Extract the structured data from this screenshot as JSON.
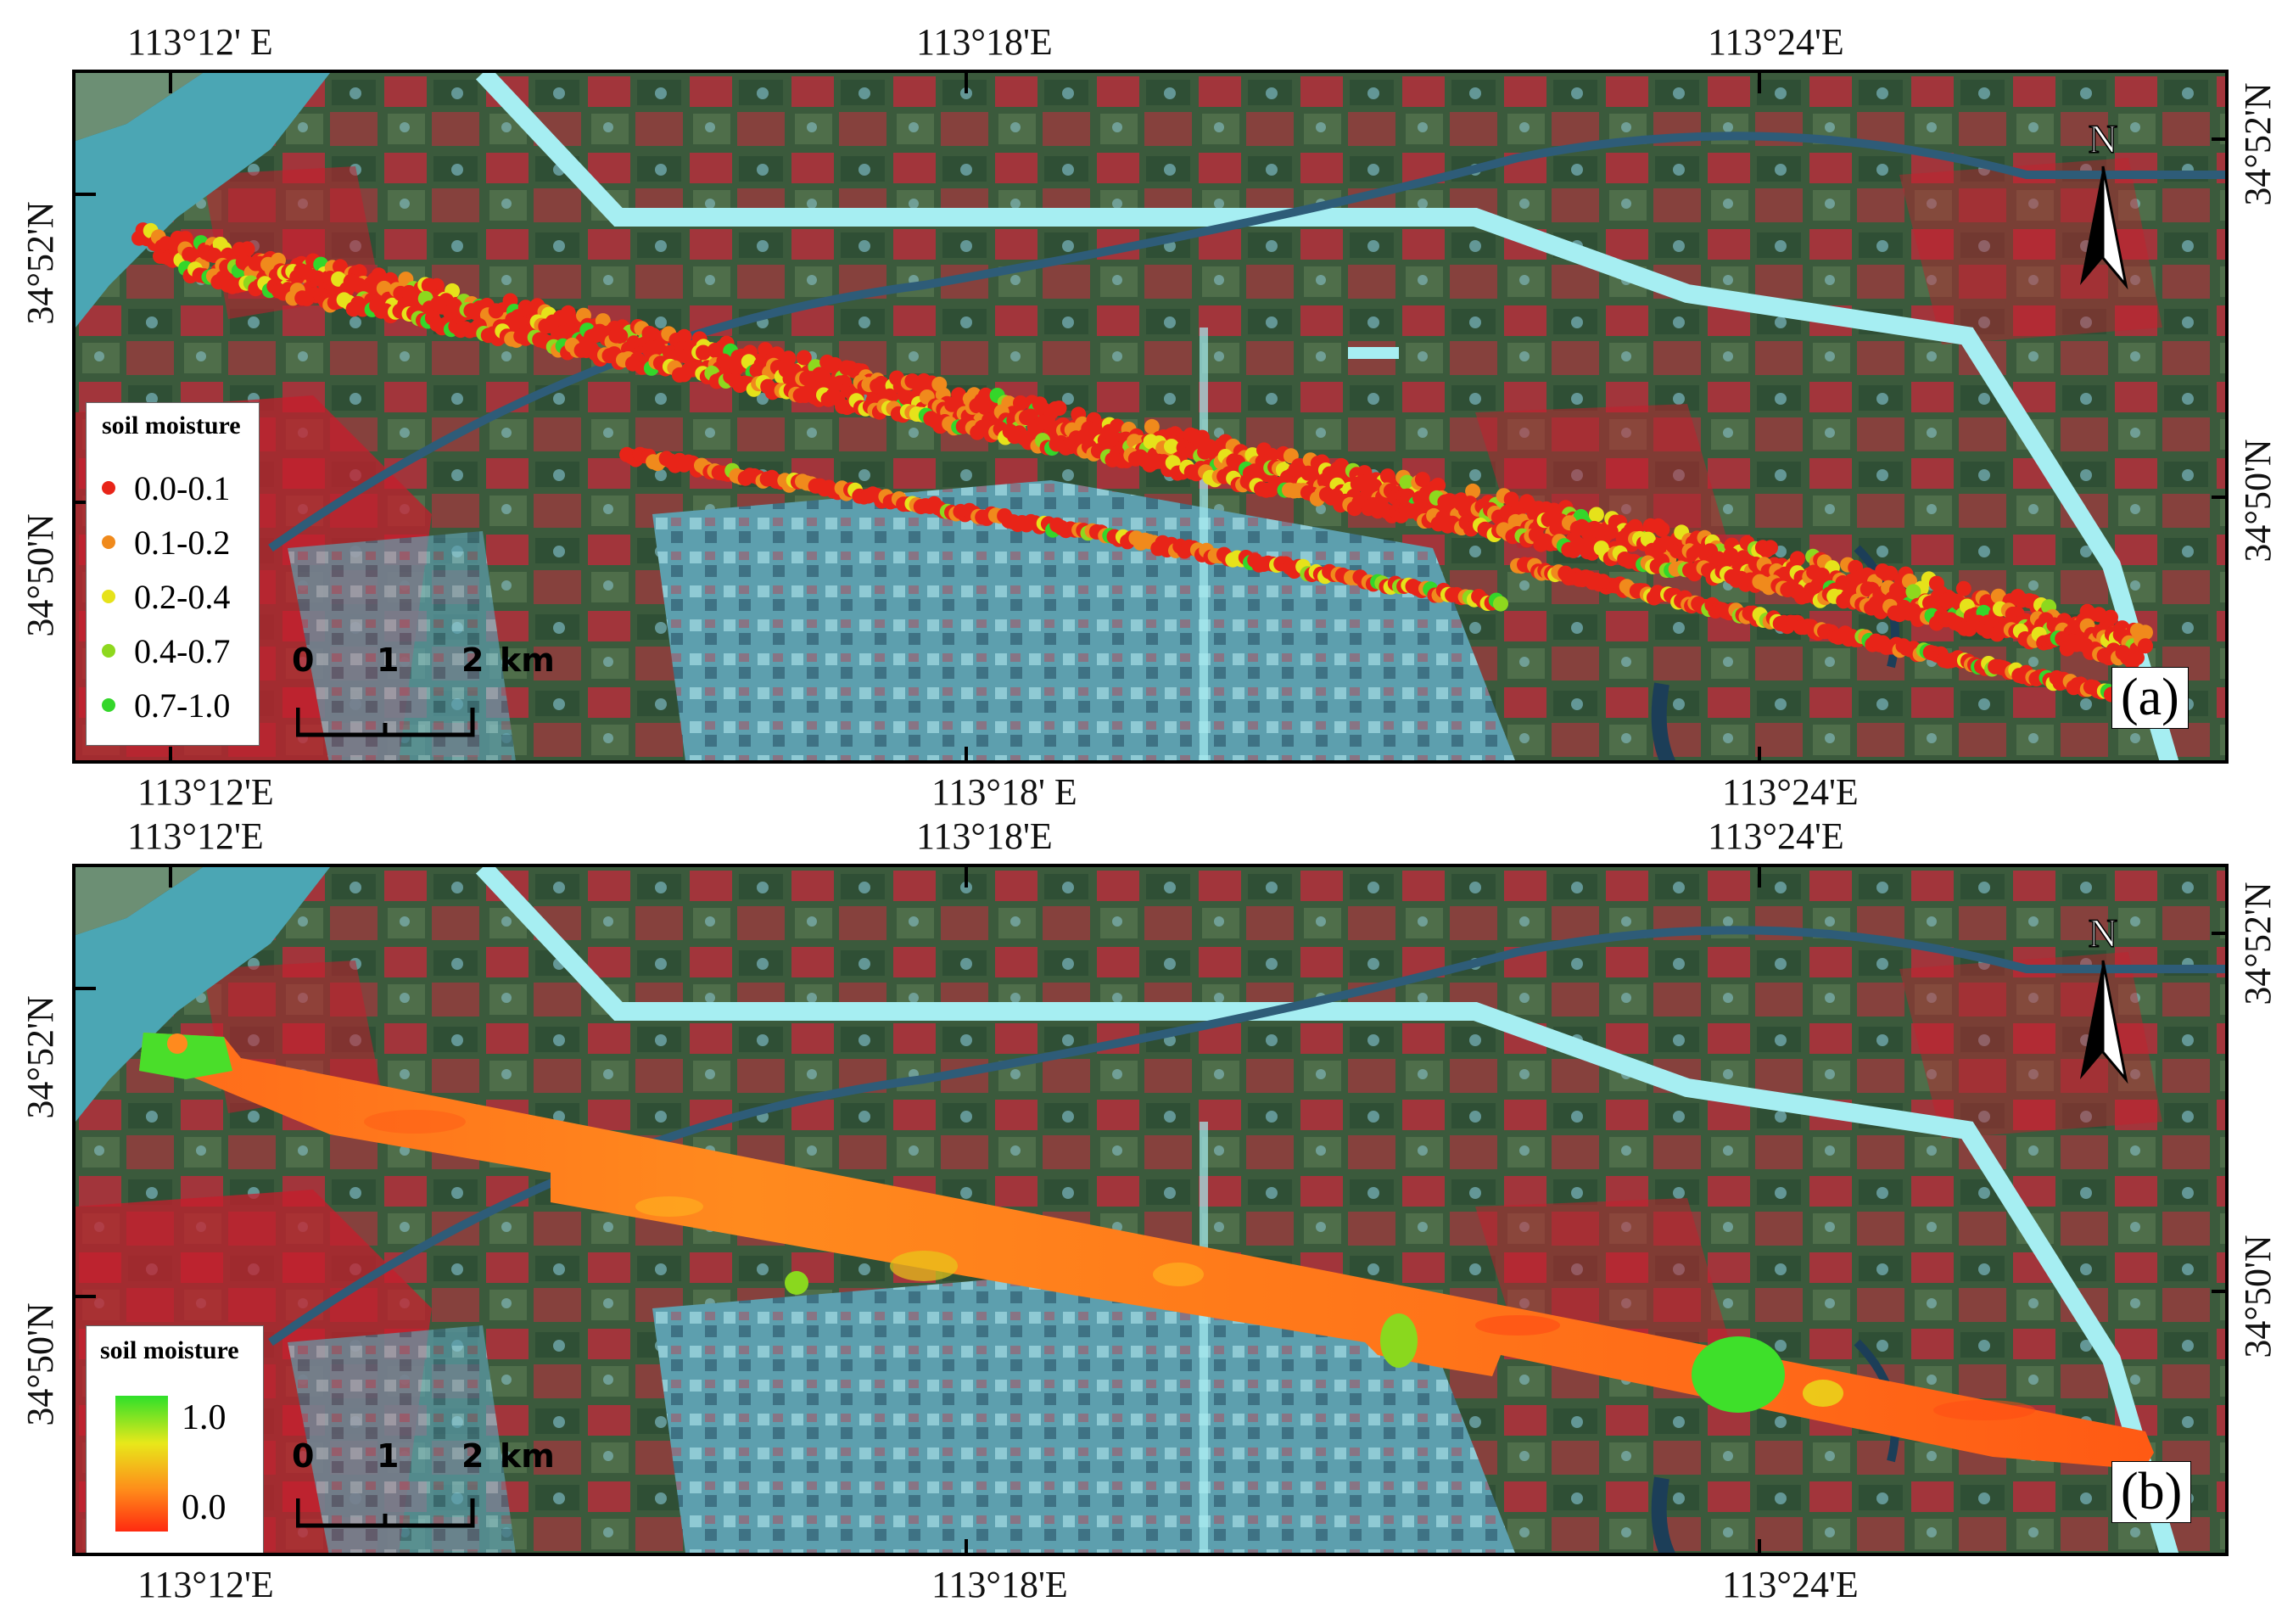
{
  "panels": [
    {
      "id": "a",
      "label": "(a)",
      "top_lon_labels": [
        "113°12' E",
        "113°18'E",
        "113°24'E"
      ],
      "bottom_lon_labels": [
        "113°12'E",
        "113°18' E",
        "113°24'E"
      ],
      "left_lat_labels": [
        "34°52'N",
        "34°50'N"
      ],
      "right_lat_labels": [
        "34°52'N",
        "34°50'N"
      ],
      "north": "N",
      "scale": {
        "ticks": [
          "0",
          "1",
          "2"
        ],
        "unit": "km"
      },
      "legend": {
        "title": "soil moisture",
        "classes": [
          {
            "label": "0.0-0.1",
            "color": "#e82418"
          },
          {
            "label": "0.1-0.2",
            "color": "#f08a1c"
          },
          {
            "label": "0.2-0.4",
            "color": "#e6e21a"
          },
          {
            "label": "0.4-0.7",
            "color": "#8ed81e"
          },
          {
            "label": "0.7-1.0",
            "color": "#34d62a"
          }
        ]
      }
    },
    {
      "id": "b",
      "label": "(b)",
      "top_lon_labels": [
        "113°12'E",
        "113°18'E",
        "113°24'E"
      ],
      "bottom_lon_labels": [
        "113°12'E",
        "113°18'E",
        "113°24'E"
      ],
      "left_lat_labels": [
        "34°52'N",
        "34°50'N"
      ],
      "right_lat_labels": [
        "34°52'N",
        "34°50'N"
      ],
      "north": "N",
      "scale": {
        "ticks": [
          "0",
          "1",
          "2"
        ],
        "unit": "km"
      },
      "legend": {
        "title": "soil moisture",
        "max_label": "1.0",
        "min_label": "0.0",
        "ramp": [
          "#2ee02a",
          "#e8e81a",
          "#ff8a1a",
          "#ff2a10"
        ]
      }
    }
  ],
  "colors": {
    "field_dark": "#3e5a3e",
    "field_red": "#c8202e",
    "urban": "#6ab4c4",
    "river": "#4aa2b2",
    "road": "#9ee8ee",
    "canal": "#2e5e78"
  }
}
